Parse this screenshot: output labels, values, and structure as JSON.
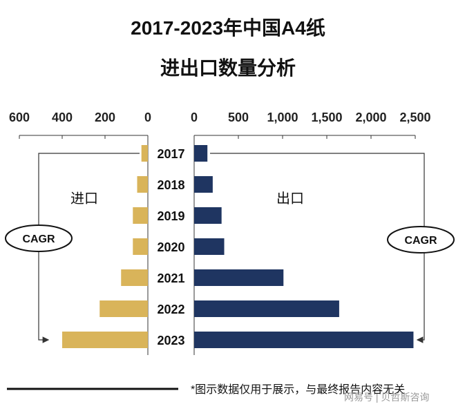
{
  "title_line1": "2017-2023年中国A4纸",
  "title_line2": "进出口数量分析",
  "footnote": "*图示数据仅用于展示，与最终报告内容无关",
  "credit": "网易号 | 贝哲斯咨询",
  "colors": {
    "import_bar": "#d9b45a",
    "export_bar": "#1f3561",
    "axis": "#333333"
  },
  "chart_data": [
    {
      "type": "bar",
      "orientation": "horizontal",
      "direction": "leftward",
      "label": "进口",
      "categories": [
        "2017",
        "2018",
        "2019",
        "2020",
        "2021",
        "2022",
        "2023"
      ],
      "values": [
        30,
        50,
        70,
        70,
        125,
        225,
        400
      ],
      "xlim": [
        0,
        600
      ],
      "ticks": [
        600,
        400,
        200,
        0
      ],
      "tick_labels": [
        "600",
        "400",
        "200",
        "0"
      ],
      "annotation": "CAGR"
    },
    {
      "type": "bar",
      "orientation": "horizontal",
      "direction": "rightward",
      "label": "出口",
      "categories": [
        "2017",
        "2018",
        "2019",
        "2020",
        "2021",
        "2022",
        "2023"
      ],
      "values": [
        150,
        210,
        310,
        340,
        1010,
        1640,
        2480
      ],
      "xlim": [
        0,
        2500
      ],
      "ticks": [
        0,
        500,
        1000,
        1500,
        2000,
        2500
      ],
      "tick_labels": [
        "0",
        "500",
        "1,000",
        "1,500",
        "2,000",
        "2,500"
      ],
      "annotation": "CAGR"
    }
  ]
}
